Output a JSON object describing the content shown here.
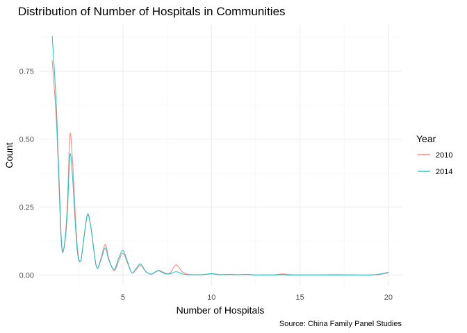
{
  "chart_data": {
    "type": "line",
    "title": "Distribution of Number of Hospitals in Communities",
    "xlabel": "Number of Hospitals",
    "ylabel": "Count",
    "caption": "Source: China Family Panel Studies",
    "xlim": [
      0.25,
      20.75
    ],
    "ylim": [
      -0.04,
      0.92
    ],
    "x_ticks": [
      5,
      10,
      15,
      20
    ],
    "y_ticks": [
      0.0,
      0.25,
      0.5,
      0.75
    ],
    "x_tick_labels": [
      "5",
      "10",
      "15",
      "20"
    ],
    "y_tick_labels": [
      "0.00",
      "0.25",
      "0.50",
      "0.75"
    ],
    "grid": true,
    "legend": {
      "title": "Year",
      "position": "right"
    },
    "series": [
      {
        "name": "2010",
        "color": "#F8766D",
        "points": [
          [
            1,
            0.79
          ],
          [
            1.25,
            0.55
          ],
          [
            1.5,
            0.14
          ],
          [
            1.65,
            0.095
          ],
          [
            1.85,
            0.25
          ],
          [
            2,
            0.515
          ],
          [
            2.15,
            0.42
          ],
          [
            2.4,
            0.12
          ],
          [
            2.6,
            0.05
          ],
          [
            2.8,
            0.14
          ],
          [
            3,
            0.22
          ],
          [
            3.2,
            0.17
          ],
          [
            3.5,
            0.03
          ],
          [
            3.75,
            0.06
          ],
          [
            4,
            0.112
          ],
          [
            4.2,
            0.06
          ],
          [
            4.5,
            0.015
          ],
          [
            4.75,
            0.05
          ],
          [
            5,
            0.08
          ],
          [
            5.25,
            0.045
          ],
          [
            5.5,
            0.008
          ],
          [
            5.75,
            0.02
          ],
          [
            6,
            0.035
          ],
          [
            6.3,
            0.012
          ],
          [
            6.6,
            0.003
          ],
          [
            7,
            0.017
          ],
          [
            7.35,
            0.008
          ],
          [
            7.65,
            0.006
          ],
          [
            8,
            0.037
          ],
          [
            8.35,
            0.012
          ],
          [
            8.7,
            0.002
          ],
          [
            9,
            0.001
          ],
          [
            9.5,
            0.001
          ],
          [
            10,
            0.004
          ],
          [
            10.5,
            0.001
          ],
          [
            11,
            0.002
          ],
          [
            11.5,
            0.001
          ],
          [
            12,
            0.002
          ],
          [
            12.5,
            0.0
          ],
          [
            13,
            0.0
          ],
          [
            13.5,
            0.0
          ],
          [
            14,
            0.004
          ],
          [
            14.5,
            0.001
          ],
          [
            15,
            0.0
          ],
          [
            16,
            0.0
          ],
          [
            17,
            0.001
          ],
          [
            18,
            0.0
          ],
          [
            19,
            0.0
          ],
          [
            19.5,
            0.002
          ],
          [
            20,
            0.008
          ]
        ]
      },
      {
        "name": "2014",
        "color": "#00BFC4",
        "points": [
          [
            1,
            0.88
          ],
          [
            1.25,
            0.6
          ],
          [
            1.5,
            0.15
          ],
          [
            1.65,
            0.095
          ],
          [
            1.85,
            0.22
          ],
          [
            2,
            0.44
          ],
          [
            2.15,
            0.36
          ],
          [
            2.4,
            0.1
          ],
          [
            2.6,
            0.05
          ],
          [
            2.8,
            0.14
          ],
          [
            3,
            0.225
          ],
          [
            3.2,
            0.17
          ],
          [
            3.5,
            0.03
          ],
          [
            3.75,
            0.055
          ],
          [
            4,
            0.1
          ],
          [
            4.2,
            0.055
          ],
          [
            4.5,
            0.02
          ],
          [
            4.75,
            0.06
          ],
          [
            5,
            0.09
          ],
          [
            5.25,
            0.05
          ],
          [
            5.5,
            0.008
          ],
          [
            5.75,
            0.025
          ],
          [
            6,
            0.04
          ],
          [
            6.3,
            0.012
          ],
          [
            6.6,
            0.003
          ],
          [
            7,
            0.015
          ],
          [
            7.35,
            0.005
          ],
          [
            7.65,
            0.004
          ],
          [
            8,
            0.012
          ],
          [
            8.35,
            0.004
          ],
          [
            8.7,
            0.001
          ],
          [
            9,
            0.001
          ],
          [
            9.5,
            0.001
          ],
          [
            10,
            0.005
          ],
          [
            10.5,
            0.001
          ],
          [
            11,
            0.002
          ],
          [
            11.5,
            0.001
          ],
          [
            12,
            0.002
          ],
          [
            12.5,
            0.0
          ],
          [
            13,
            0.0
          ],
          [
            13.5,
            0.0
          ],
          [
            14,
            0.001
          ],
          [
            14.5,
            0.0
          ],
          [
            15,
            0.0
          ],
          [
            16,
            0.0
          ],
          [
            17,
            0.0
          ],
          [
            18,
            0.0
          ],
          [
            19,
            0.0
          ],
          [
            19.5,
            0.003
          ],
          [
            20,
            0.01
          ]
        ]
      }
    ]
  }
}
